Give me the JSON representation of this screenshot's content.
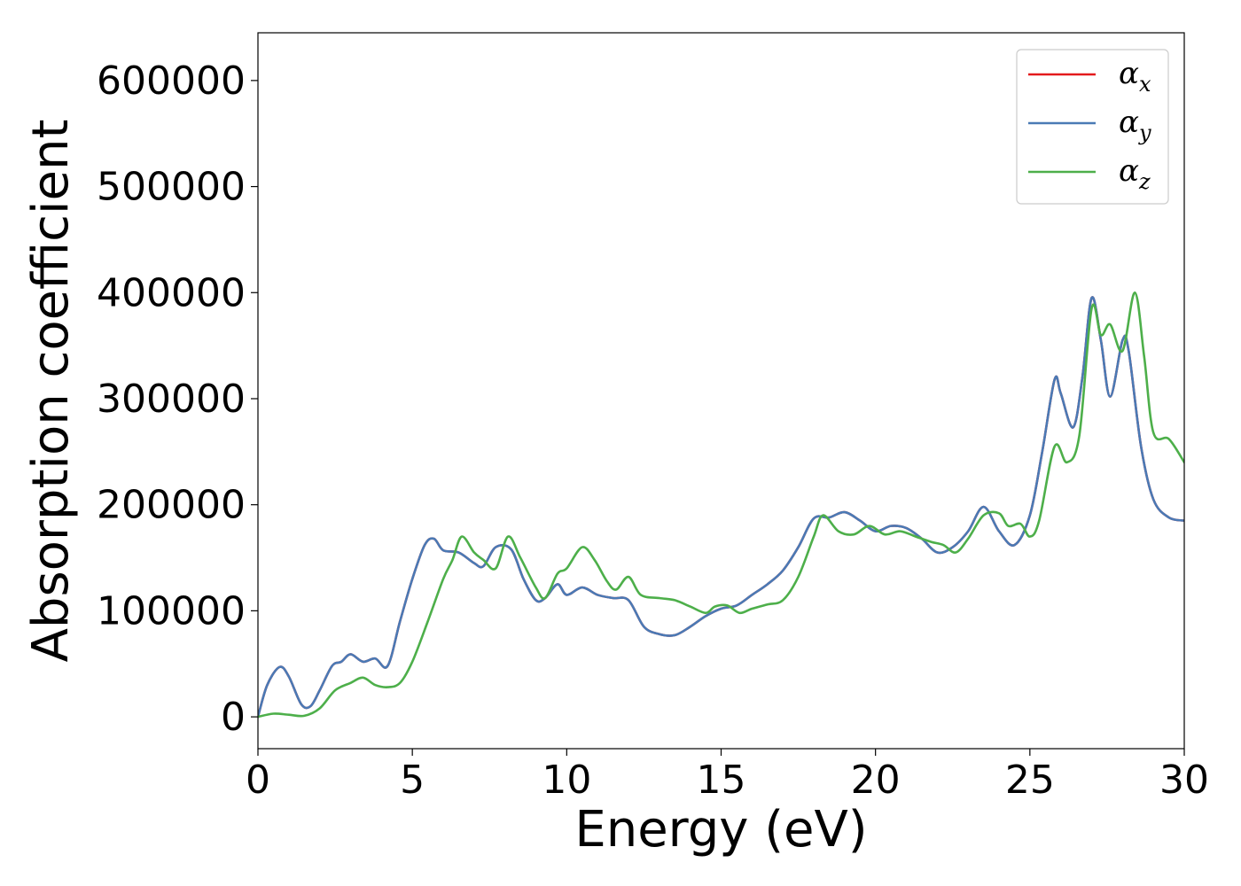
{
  "chart_data": {
    "type": "line",
    "xlabel": "Energy (eV)",
    "ylabel": "Absorption coefficient",
    "xlim": [
      0,
      30
    ],
    "ylim": [
      -30000,
      645000
    ],
    "xticks": [
      0,
      5,
      10,
      15,
      20,
      25,
      30
    ],
    "yticks": [
      0,
      100000,
      200000,
      300000,
      400000,
      500000,
      600000
    ],
    "xtick_labels": [
      "0",
      "5",
      "10",
      "15",
      "20",
      "25",
      "30"
    ],
    "ytick_labels": [
      "0",
      "100000",
      "200000",
      "300000",
      "400000",
      "500000",
      "600000"
    ],
    "grid": false,
    "legend_position": "top-right",
    "series": [
      {
        "name": "α",
        "subscript": "x",
        "color": "#e41a1c",
        "x": [
          0,
          0.3,
          0.7,
          1.0,
          1.4,
          1.7,
          2.0,
          2.4,
          2.7,
          3.0,
          3.4,
          3.8,
          4.2,
          4.6,
          5.0,
          5.4,
          5.7,
          6.0,
          6.5,
          7.0,
          7.3,
          7.7,
          8.2,
          8.6,
          9.0,
          9.3,
          9.7,
          10.0,
          10.5,
          11.0,
          11.5,
          12.0,
          12.5,
          13.0,
          13.5,
          14.0,
          14.5,
          15.0,
          15.5,
          16.0,
          16.5,
          17.0,
          17.5,
          18.0,
          18.5,
          19.0,
          19.5,
          20.0,
          20.5,
          21.0,
          21.5,
          22.0,
          22.5,
          23.0,
          23.5,
          24.0,
          24.5,
          25.0,
          25.4,
          25.8,
          26.0,
          26.4,
          26.7,
          27.0,
          27.3,
          27.6,
          28.0,
          28.2,
          28.6,
          29.0,
          29.5,
          30.0
        ],
        "values": [
          0,
          30000,
          47000,
          38000,
          12000,
          10000,
          25000,
          48000,
          52000,
          59000,
          52000,
          55000,
          48000,
          90000,
          130000,
          162000,
          168000,
          157000,
          155000,
          145000,
          142000,
          160000,
          158000,
          130000,
          110000,
          112000,
          125000,
          115000,
          122000,
          115000,
          112000,
          110000,
          85000,
          78000,
          77000,
          85000,
          95000,
          102000,
          105000,
          115000,
          125000,
          138000,
          160000,
          187000,
          188000,
          193000,
          185000,
          175000,
          180000,
          178000,
          168000,
          155000,
          160000,
          175000,
          198000,
          175000,
          162000,
          190000,
          250000,
          318000,
          305000,
          273000,
          320000,
          395000,
          355000,
          302000,
          355000,
          345000,
          255000,
          205000,
          188000,
          185000
        ]
      },
      {
        "name": "α",
        "subscript": "y",
        "color": "#4a7ab5",
        "x": [
          0,
          0.3,
          0.7,
          1.0,
          1.4,
          1.7,
          2.0,
          2.4,
          2.7,
          3.0,
          3.4,
          3.8,
          4.2,
          4.6,
          5.0,
          5.4,
          5.7,
          6.0,
          6.5,
          7.0,
          7.3,
          7.7,
          8.2,
          8.6,
          9.0,
          9.3,
          9.7,
          10.0,
          10.5,
          11.0,
          11.5,
          12.0,
          12.5,
          13.0,
          13.5,
          14.0,
          14.5,
          15.0,
          15.5,
          16.0,
          16.5,
          17.0,
          17.5,
          18.0,
          18.5,
          19.0,
          19.5,
          20.0,
          20.5,
          21.0,
          21.5,
          22.0,
          22.5,
          23.0,
          23.5,
          24.0,
          24.5,
          25.0,
          25.4,
          25.8,
          26.0,
          26.4,
          26.7,
          27.0,
          27.3,
          27.6,
          28.0,
          28.2,
          28.6,
          29.0,
          29.5,
          30.0
        ],
        "values": [
          0,
          30000,
          47000,
          38000,
          12000,
          10000,
          25000,
          48000,
          52000,
          59000,
          52000,
          55000,
          48000,
          90000,
          130000,
          162000,
          168000,
          157000,
          155000,
          145000,
          142000,
          160000,
          158000,
          130000,
          110000,
          112000,
          125000,
          115000,
          122000,
          115000,
          112000,
          110000,
          85000,
          78000,
          77000,
          85000,
          95000,
          102000,
          105000,
          115000,
          125000,
          138000,
          160000,
          187000,
          188000,
          193000,
          185000,
          175000,
          180000,
          178000,
          168000,
          155000,
          160000,
          175000,
          198000,
          175000,
          162000,
          190000,
          250000,
          318000,
          305000,
          273000,
          320000,
          395000,
          355000,
          302000,
          355000,
          345000,
          255000,
          205000,
          188000,
          185000
        ]
      },
      {
        "name": "α",
        "subscript": "z",
        "color": "#4daf4a",
        "x": [
          0,
          0.5,
          1.0,
          1.5,
          2.0,
          2.5,
          3.0,
          3.4,
          3.8,
          4.2,
          4.6,
          5.0,
          5.5,
          6.0,
          6.3,
          6.6,
          7.0,
          7.3,
          7.7,
          8.1,
          8.5,
          9.0,
          9.3,
          9.7,
          10.0,
          10.5,
          10.9,
          11.3,
          11.6,
          12.0,
          12.4,
          13.0,
          13.5,
          14.0,
          14.5,
          14.8,
          15.2,
          15.6,
          16.0,
          16.5,
          17.0,
          17.5,
          18.0,
          18.3,
          18.8,
          19.3,
          19.8,
          20.3,
          20.8,
          21.3,
          21.8,
          22.2,
          22.6,
          23.0,
          23.5,
          24.0,
          24.3,
          24.7,
          25.0,
          25.3,
          25.8,
          26.2,
          26.6,
          27.0,
          27.3,
          27.6,
          28.0,
          28.4,
          28.7,
          29.0,
          29.5,
          30.0
        ],
        "values": [
          0,
          3000,
          2000,
          1000,
          8000,
          25000,
          32000,
          37000,
          30000,
          28000,
          32000,
          52000,
          90000,
          130000,
          148000,
          170000,
          155000,
          148000,
          140000,
          170000,
          150000,
          122000,
          112000,
          135000,
          140000,
          160000,
          148000,
          128000,
          120000,
          132000,
          115000,
          112000,
          110000,
          104000,
          98000,
          104000,
          105000,
          98000,
          102000,
          106000,
          110000,
          132000,
          170000,
          190000,
          175000,
          172000,
          180000,
          172000,
          175000,
          170000,
          165000,
          162000,
          155000,
          168000,
          190000,
          192000,
          180000,
          182000,
          170000,
          185000,
          255000,
          240000,
          265000,
          385000,
          360000,
          370000,
          345000,
          400000,
          340000,
          268000,
          262000,
          240000
        ]
      }
    ]
  }
}
